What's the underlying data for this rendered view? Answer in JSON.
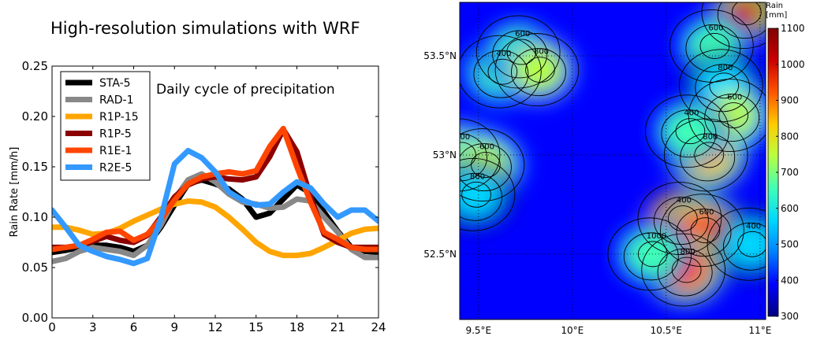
{
  "figure_title": "High-resolution simulations with WRF",
  "chart_data": [
    {
      "type": "line",
      "title": "Daily cycle of precipitation",
      "xlabel": "",
      "ylabel": "Rain Rate [mm/h]",
      "xlim": [
        0,
        24
      ],
      "ylim": [
        0,
        0.25
      ],
      "xticks": [
        0,
        3,
        6,
        9,
        12,
        15,
        18,
        21,
        24
      ],
      "yticks": [
        0.0,
        0.05,
        0.1,
        0.15,
        0.2,
        0.25
      ],
      "ytick_labels": [
        "0.00",
        "0.05",
        "0.10",
        "0.15",
        "0.20",
        "0.25"
      ],
      "grid": false,
      "legend_position": "top-left",
      "x": [
        0,
        1,
        2,
        3,
        4,
        5,
        6,
        7,
        8,
        9,
        10,
        11,
        12,
        13,
        14,
        15,
        16,
        17,
        18,
        19,
        20,
        21,
        22,
        23,
        24
      ],
      "series": [
        {
          "name": "STA-5",
          "color": "#000000",
          "values": [
            0.065,
            0.067,
            0.07,
            0.072,
            0.072,
            0.07,
            0.066,
            0.072,
            0.09,
            0.112,
            0.133,
            0.137,
            0.133,
            0.128,
            0.118,
            0.1,
            0.104,
            0.118,
            0.132,
            0.124,
            0.105,
            0.086,
            0.07,
            0.066,
            0.065
          ]
        },
        {
          "name": "RAD-1",
          "color": "#888888",
          "values": [
            0.056,
            0.059,
            0.066,
            0.07,
            0.068,
            0.066,
            0.062,
            0.072,
            0.092,
            0.118,
            0.137,
            0.143,
            0.135,
            0.123,
            0.115,
            0.113,
            0.109,
            0.11,
            0.118,
            0.116,
            0.1,
            0.085,
            0.068,
            0.06,
            0.06
          ]
        },
        {
          "name": "R1P-15",
          "color": "#ffa500",
          "values": [
            0.09,
            0.09,
            0.087,
            0.083,
            0.084,
            0.089,
            0.096,
            0.102,
            0.108,
            0.113,
            0.116,
            0.115,
            0.11,
            0.1,
            0.088,
            0.075,
            0.066,
            0.062,
            0.062,
            0.064,
            0.07,
            0.077,
            0.084,
            0.088,
            0.089
          ]
        },
        {
          "name": "R1P-5",
          "color": "#8b0000",
          "values": [
            0.07,
            0.07,
            0.072,
            0.076,
            0.081,
            0.077,
            0.075,
            0.082,
            0.1,
            0.12,
            0.132,
            0.138,
            0.14,
            0.138,
            0.137,
            0.14,
            0.16,
            0.187,
            0.165,
            0.12,
            0.083,
            0.075,
            0.07,
            0.07,
            0.07
          ]
        },
        {
          "name": "R1E-1",
          "color": "#ff4500",
          "values": [
            0.068,
            0.07,
            0.072,
            0.078,
            0.085,
            0.086,
            0.077,
            0.083,
            0.098,
            0.117,
            0.133,
            0.14,
            0.143,
            0.145,
            0.143,
            0.146,
            0.17,
            0.188,
            0.15,
            0.115,
            0.085,
            0.078,
            0.07,
            0.068,
            0.068
          ]
        },
        {
          "name": "R2E-5",
          "color": "#3399ff",
          "values": [
            0.107,
            0.09,
            0.072,
            0.066,
            0.061,
            0.058,
            0.054,
            0.059,
            0.099,
            0.153,
            0.166,
            0.159,
            0.145,
            0.125,
            0.117,
            0.112,
            0.113,
            0.125,
            0.135,
            0.129,
            0.113,
            0.1,
            0.107,
            0.107,
            0.096
          ]
        }
      ]
    },
    {
      "type": "heatmap",
      "title": "",
      "colorbar_title": "Rain\n[mm]",
      "colorbar_range": [
        300,
        1100
      ],
      "colorbar_ticks": [
        300,
        400,
        500,
        600,
        700,
        800,
        900,
        1000,
        1100
      ],
      "colormap_stops": [
        "#00007f",
        "#0000ff",
        "#0080ff",
        "#00d7ff",
        "#40ffb7",
        "#b7ff40",
        "#ffcc00",
        "#ff5500",
        "#cc0000",
        "#7f0000"
      ],
      "x_tick_labels": [
        "9.5°E",
        "10°E",
        "10.5°E",
        "11°E"
      ],
      "x_ticks": [
        9.5,
        10.0,
        10.5,
        11.0
      ],
      "y_tick_labels": [
        "52.5°N",
        "53°N",
        "53.5°N"
      ],
      "y_ticks": [
        52.5,
        53.0,
        53.5
      ],
      "xlim": [
        9.4,
        11.03
      ],
      "ylim": [
        52.17,
        53.77
      ],
      "contour_labels": [
        "400",
        "600",
        "800",
        "400",
        "600",
        "800",
        "400",
        "600",
        "800",
        "800",
        "600",
        "400",
        "400",
        "600",
        "800",
        "1000",
        "400"
      ],
      "rain_fields": [
        {
          "lon": 9.4,
          "lat": 53.0,
          "value": 720
        },
        {
          "lon": 9.53,
          "lat": 52.95,
          "value": 780
        },
        {
          "lon": 9.48,
          "lat": 52.8,
          "value": 560
        },
        {
          "lon": 9.62,
          "lat": 53.42,
          "value": 680
        },
        {
          "lon": 9.72,
          "lat": 53.52,
          "value": 640
        },
        {
          "lon": 9.82,
          "lat": 53.43,
          "value": 720
        },
        {
          "lon": 10.92,
          "lat": 53.72,
          "value": 1000
        },
        {
          "lon": 10.75,
          "lat": 53.55,
          "value": 640
        },
        {
          "lon": 10.8,
          "lat": 53.35,
          "value": 560
        },
        {
          "lon": 10.72,
          "lat": 53.0,
          "value": 850
        },
        {
          "lon": 10.85,
          "lat": 53.2,
          "value": 760
        },
        {
          "lon": 10.62,
          "lat": 53.12,
          "value": 640
        },
        {
          "lon": 10.58,
          "lat": 52.68,
          "value": 1020
        },
        {
          "lon": 10.7,
          "lat": 52.62,
          "value": 880
        },
        {
          "lon": 10.6,
          "lat": 52.42,
          "value": 880
        },
        {
          "lon": 10.42,
          "lat": 52.5,
          "value": 620
        },
        {
          "lon": 10.95,
          "lat": 52.55,
          "value": 560
        }
      ]
    }
  ]
}
